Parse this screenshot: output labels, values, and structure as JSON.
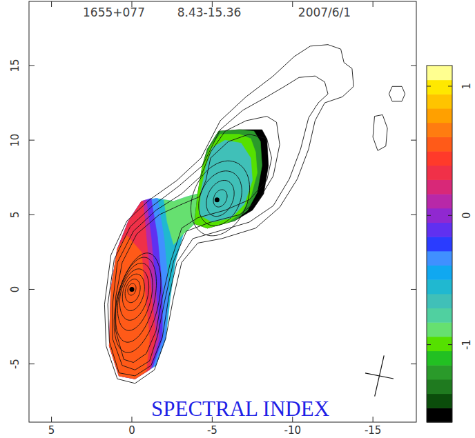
{
  "chart_data": {
    "type": "contour_map",
    "title": "1655+077",
    "subtitle": "8.43-15.36",
    "annotations": [
      "2007/6/1",
      "SPECTRAL INDEX"
    ],
    "xlim": [
      6.4,
      -17.7
    ],
    "ylim": [
      -8.9,
      19.3
    ],
    "xticks": [
      5,
      0,
      -5,
      -10,
      -15
    ],
    "yticks": [
      -5,
      0,
      5,
      10,
      15
    ],
    "colorbar": {
      "range": [
        -1.6,
        1.16
      ],
      "ticks": [
        -1,
        0,
        1
      ]
    },
    "spectral_index": [
      {
        "value": -0.6,
        "points": [
          [
            0.8,
            -5.8
          ],
          [
            1.4,
            -3.8
          ],
          [
            1.3,
            0.0
          ],
          [
            0.9,
            2.7
          ],
          [
            0.2,
            4.6
          ],
          [
            -0.6,
            5.9
          ],
          [
            -1.5,
            6.1
          ],
          [
            -2.6,
            5.9
          ],
          [
            -3.4,
            6.2
          ],
          [
            -4.1,
            6.4
          ],
          [
            -3.9,
            4.4
          ],
          [
            -3.2,
            3.7
          ],
          [
            -2.7,
            1.8
          ],
          [
            -2.4,
            -0.5
          ],
          [
            -2.1,
            -3.3
          ],
          [
            -1.5,
            -5.1
          ],
          [
            -0.2,
            -6.0
          ]
        ]
      },
      {
        "value": -0.9,
        "points": [
          [
            -2.0,
            6.0
          ],
          [
            -2.6,
            5.9
          ],
          [
            -3.4,
            6.2
          ],
          [
            -4.1,
            6.4
          ],
          [
            -3.9,
            4.4
          ],
          [
            -3.2,
            3.7
          ],
          [
            -2.6,
            3.0
          ],
          [
            -2.2,
            4.5
          ]
        ]
      },
      {
        "value": -0.35,
        "points": [
          [
            -0.2,
            -6.0
          ],
          [
            0.8,
            -5.8
          ],
          [
            1.4,
            -3.8
          ],
          [
            1.3,
            0.0
          ],
          [
            0.9,
            2.7
          ],
          [
            0.2,
            4.6
          ],
          [
            -0.6,
            5.9
          ],
          [
            -1.6,
            6.1
          ],
          [
            -2.0,
            3.5
          ],
          [
            -2.3,
            0.0
          ],
          [
            -2.1,
            -3.3
          ],
          [
            -1.5,
            -5.1
          ]
        ]
      },
      {
        "value": -0.1,
        "points": [
          [
            -0.2,
            -6.0
          ],
          [
            0.8,
            -5.8
          ],
          [
            1.4,
            -3.8
          ],
          [
            1.3,
            0.0
          ],
          [
            0.9,
            2.7
          ],
          [
            0.2,
            4.6
          ],
          [
            -0.6,
            5.9
          ],
          [
            -1.2,
            6.1
          ],
          [
            -1.6,
            3.5
          ],
          [
            -1.9,
            0.0
          ],
          [
            -1.9,
            -3.3
          ],
          [
            -1.3,
            -5.2
          ]
        ]
      },
      {
        "value": 0.15,
        "points": [
          [
            -0.2,
            -6.0
          ],
          [
            0.8,
            -5.8
          ],
          [
            1.4,
            -3.8
          ],
          [
            1.3,
            0.0
          ],
          [
            0.9,
            2.7
          ],
          [
            0.2,
            4.6
          ],
          [
            -0.6,
            5.9
          ],
          [
            -0.9,
            6.0
          ],
          [
            -1.2,
            3.5
          ],
          [
            -1.5,
            0.0
          ],
          [
            -1.7,
            -3.3
          ],
          [
            -1.2,
            -5.3
          ]
        ]
      },
      {
        "value": 0.35,
        "points": [
          [
            -0.2,
            -6.0
          ],
          [
            0.8,
            -5.8
          ],
          [
            1.4,
            -3.8
          ],
          [
            1.3,
            0.0
          ],
          [
            0.9,
            2.7
          ],
          [
            0.2,
            4.6
          ],
          [
            -0.6,
            5.9
          ],
          [
            -0.7,
            5.9
          ],
          [
            -0.9,
            3.5
          ],
          [
            -1.2,
            0.0
          ],
          [
            -1.5,
            -3.3
          ],
          [
            -1.1,
            -5.4
          ]
        ]
      },
      {
        "value": 0.55,
        "points": [
          [
            -0.2,
            -6.0
          ],
          [
            0.8,
            -5.8
          ],
          [
            1.4,
            -3.8
          ],
          [
            1.3,
            0.0
          ],
          [
            0.9,
            2.7
          ],
          [
            0.3,
            3.6
          ],
          [
            -0.6,
            2.5
          ],
          [
            -0.8,
            0.0
          ],
          [
            -1.1,
            -3.3
          ],
          [
            -0.9,
            -5.5
          ]
        ]
      },
      {
        "value": -1.55,
        "points": [
          [
            -4.7,
            9.4
          ],
          [
            -5.4,
            10.6
          ],
          [
            -6.7,
            10.7
          ],
          [
            -8.1,
            10.7
          ],
          [
            -8.4,
            10.1
          ],
          [
            -8.5,
            8.3
          ],
          [
            -8.2,
            6.4
          ],
          [
            -7.5,
            5.3
          ],
          [
            -6.4,
            4.6
          ],
          [
            -4.7,
            4.1
          ],
          [
            -3.9,
            4.4
          ],
          [
            -4.1,
            6.4
          ],
          [
            -4.4,
            8.3
          ]
        ]
      },
      {
        "value": -1.2,
        "points": [
          [
            -4.7,
            9.4
          ],
          [
            -5.4,
            10.6
          ],
          [
            -6.7,
            10.7
          ],
          [
            -7.6,
            10.6
          ],
          [
            -8.0,
            9.9
          ],
          [
            -8.1,
            8.3
          ],
          [
            -7.8,
            6.5
          ],
          [
            -7.2,
            5.3
          ],
          [
            -6.4,
            4.6
          ],
          [
            -4.7,
            4.1
          ],
          [
            -3.9,
            4.4
          ],
          [
            -4.1,
            6.4
          ],
          [
            -4.4,
            8.3
          ]
        ]
      },
      {
        "value": -1.0,
        "points": [
          [
            -4.9,
            9.6
          ],
          [
            -5.5,
            10.4
          ],
          [
            -6.7,
            10.4
          ],
          [
            -7.4,
            10.1
          ],
          [
            -7.7,
            9.2
          ],
          [
            -7.8,
            7.8
          ],
          [
            -7.4,
            6.2
          ],
          [
            -6.8,
            5.1
          ],
          [
            -6.0,
            4.5
          ],
          [
            -4.7,
            4.1
          ],
          [
            -3.9,
            4.4
          ],
          [
            -4.1,
            6.4
          ],
          [
            -4.4,
            8.3
          ]
        ]
      },
      {
        "value": -0.7,
        "points": [
          [
            -5.0,
            9.5
          ],
          [
            -5.8,
            10.0
          ],
          [
            -6.8,
            9.8
          ],
          [
            -7.4,
            8.8
          ],
          [
            -7.5,
            7.3
          ],
          [
            -7.0,
            5.7
          ],
          [
            -6.2,
            4.8
          ],
          [
            -5.0,
            4.5
          ],
          [
            -4.2,
            5.0
          ],
          [
            -4.3,
            6.6
          ],
          [
            -4.6,
            8.2
          ]
        ]
      }
    ],
    "contours": [
      {
        "points": [
          [
            0.9,
            -6.0
          ],
          [
            1.6,
            -3.8
          ],
          [
            1.7,
            -1.0
          ],
          [
            1.3,
            2.3
          ],
          [
            0.3,
            4.6
          ],
          [
            -1.1,
            6.0
          ],
          [
            -2.8,
            7.3
          ],
          [
            -4.3,
            8.8
          ],
          [
            -5.5,
            11.3
          ],
          [
            -7.1,
            12.9
          ],
          [
            -8.8,
            14.3
          ],
          [
            -10.1,
            15.6
          ],
          [
            -11.1,
            16.3
          ],
          [
            -12.2,
            16.4
          ],
          [
            -13.0,
            16.1
          ],
          [
            -13.2,
            15.2
          ],
          [
            -13.7,
            14.8
          ],
          [
            -13.8,
            13.6
          ],
          [
            -13.1,
            12.9
          ],
          [
            -12.0,
            12.5
          ],
          [
            -11.4,
            11.3
          ],
          [
            -11.0,
            9.4
          ],
          [
            -10.3,
            7.4
          ],
          [
            -9.2,
            5.5
          ],
          [
            -7.7,
            4.1
          ],
          [
            -5.6,
            3.4
          ],
          [
            -4.1,
            3.1
          ],
          [
            -3.1,
            1.8
          ],
          [
            -2.6,
            -0.5
          ],
          [
            -2.1,
            -3.3
          ],
          [
            -1.4,
            -5.4
          ],
          [
            -0.2,
            -6.3
          ]
        ]
      },
      {
        "points": [
          [
            0.8,
            -5.6
          ],
          [
            1.4,
            -3.5
          ],
          [
            1.5,
            -1.0
          ],
          [
            1.1,
            2.0
          ],
          [
            0.1,
            4.2
          ],
          [
            -1.3,
            5.6
          ],
          [
            -2.9,
            6.9
          ],
          [
            -4.4,
            8.3
          ],
          [
            -5.5,
            10.7
          ],
          [
            -6.9,
            12.0
          ],
          [
            -8.4,
            12.9
          ],
          [
            -9.5,
            13.6
          ],
          [
            -10.4,
            14.2
          ],
          [
            -11.4,
            14.3
          ],
          [
            -12.0,
            13.9
          ],
          [
            -12.2,
            13.1
          ],
          [
            -11.6,
            12.5
          ],
          [
            -11.0,
            11.5
          ],
          [
            -10.5,
            9.4
          ],
          [
            -9.8,
            7.4
          ],
          [
            -8.8,
            5.6
          ],
          [
            -7.3,
            4.5
          ],
          [
            -5.4,
            3.9
          ],
          [
            -3.8,
            3.4
          ],
          [
            -2.8,
            1.8
          ],
          [
            -2.3,
            -0.5
          ],
          [
            -1.9,
            -3.2
          ],
          [
            -1.2,
            -5.1
          ],
          [
            -0.2,
            -5.8
          ]
        ]
      },
      {
        "points": [
          [
            0.6,
            -5.1
          ],
          [
            1.2,
            -3.3
          ],
          [
            1.2,
            -1.0
          ],
          [
            0.9,
            1.8
          ],
          [
            -0.1,
            3.9
          ],
          [
            -1.5,
            5.3
          ],
          [
            -3.1,
            6.4
          ],
          [
            -4.3,
            7.6
          ],
          [
            -4.9,
            9.2
          ],
          [
            -5.8,
            10.6
          ],
          [
            -7.1,
            11.3
          ],
          [
            -8.4,
            11.6
          ],
          [
            -9.0,
            11.2
          ],
          [
            -9.2,
            9.7
          ],
          [
            -8.8,
            7.6
          ],
          [
            -7.9,
            6.0
          ],
          [
            -6.7,
            5.0
          ],
          [
            -4.9,
            4.5
          ],
          [
            -3.4,
            3.9
          ],
          [
            -2.6,
            1.9
          ],
          [
            -2.1,
            -0.5
          ],
          [
            -1.6,
            -3.1
          ],
          [
            -1.1,
            -4.8
          ],
          [
            -0.2,
            -5.4
          ]
        ]
      },
      {
        "points": [
          [
            0.5,
            -4.7
          ],
          [
            1.0,
            -2.8
          ],
          [
            1.0,
            -0.5
          ],
          [
            0.6,
            1.8
          ],
          [
            -0.3,
            3.7
          ],
          [
            -1.7,
            5.0
          ],
          [
            -3.1,
            5.7
          ],
          [
            -4.2,
            6.2
          ],
          [
            -4.6,
            7.3
          ],
          [
            -4.9,
            8.8
          ],
          [
            -6.0,
            9.9
          ],
          [
            -7.3,
            10.4
          ],
          [
            -8.4,
            10.1
          ],
          [
            -8.7,
            8.8
          ],
          [
            -8.4,
            7.3
          ],
          [
            -7.3,
            6.0
          ],
          [
            -5.8,
            5.3
          ],
          [
            -4.1,
            4.8
          ],
          [
            -3.1,
            4.1
          ],
          [
            -2.4,
            1.8
          ],
          [
            -1.9,
            -0.5
          ],
          [
            -1.5,
            -2.8
          ],
          [
            -0.9,
            -4.3
          ],
          [
            -0.1,
            -4.9
          ]
        ]
      },
      {
        "points": [
          [
            -16.2,
            13.6
          ],
          [
            -16.8,
            13.6
          ],
          [
            -17.0,
            13.1
          ],
          [
            -16.8,
            12.6
          ],
          [
            -16.2,
            12.6
          ],
          [
            -16.0,
            13.1
          ]
        ]
      },
      {
        "points": [
          [
            -15.1,
            11.6
          ],
          [
            -15.6,
            11.7
          ],
          [
            -15.9,
            10.8
          ],
          [
            -15.8,
            9.6
          ],
          [
            -15.3,
            9.3
          ],
          [
            -15.0,
            10.2
          ]
        ]
      }
    ],
    "contour_ellipses": [
      {
        "x": -5.5,
        "y": 6.1,
        "major": 2.6,
        "minor": 1.7,
        "pa": -20
      },
      {
        "x": -5.5,
        "y": 6.1,
        "major": 1.9,
        "minor": 1.25,
        "pa": -20
      },
      {
        "x": -5.5,
        "y": 6.1,
        "major": 1.25,
        "minor": 0.8,
        "pa": -20
      },
      {
        "x": -5.5,
        "y": 6.1,
        "major": 0.6,
        "minor": 0.4,
        "pa": -20
      },
      {
        "x": -0.35,
        "y": -0.9,
        "major": 3.4,
        "minor": 1.3,
        "pa": -12
      },
      {
        "x": -0.25,
        "y": -0.7,
        "major": 2.9,
        "minor": 1.15,
        "pa": -12
      },
      {
        "x": -0.2,
        "y": -0.5,
        "major": 2.3,
        "minor": 1.0,
        "pa": -12
      },
      {
        "x": -0.15,
        "y": -0.35,
        "major": 1.75,
        "minor": 0.85,
        "pa": -12
      },
      {
        "x": -0.1,
        "y": -0.2,
        "major": 1.25,
        "minor": 0.65,
        "pa": -12
      },
      {
        "x": -0.05,
        "y": -0.1,
        "major": 0.8,
        "minor": 0.45,
        "pa": -12
      },
      {
        "x": 0,
        "y": 0,
        "major": 0.4,
        "minor": 0.25,
        "pa": -12
      }
    ],
    "components": [
      {
        "x": 0,
        "y": 0
      },
      {
        "x": -5.3,
        "y": 6.0
      }
    ],
    "beam": {
      "x": -15.4,
      "y": -5.8,
      "major": 2.8,
      "minor": 1.8,
      "pa": -12
    }
  }
}
